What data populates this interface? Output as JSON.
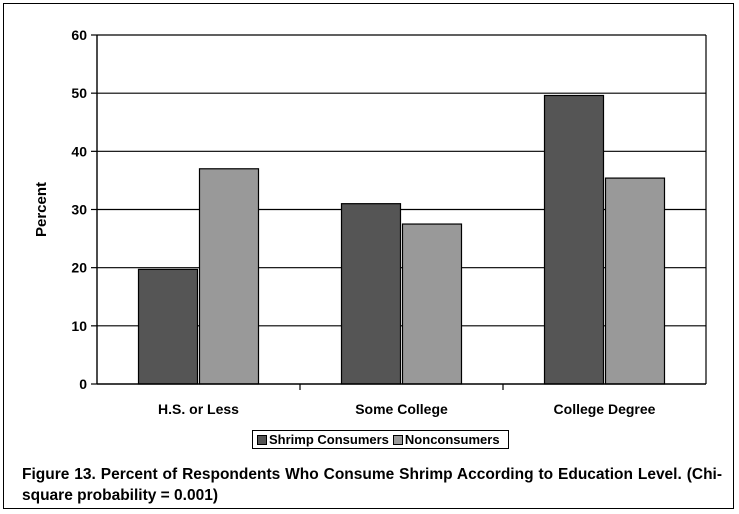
{
  "chart_data": {
    "type": "bar",
    "categories": [
      "H.S. or Less",
      "Some College",
      "College Degree"
    ],
    "series": [
      {
        "name": "Shrimp Consumers",
        "values": [
          19.7,
          31,
          49.6
        ],
        "color": "#555555"
      },
      {
        "name": "Nonconsumers",
        "values": [
          37,
          27.5,
          35.4
        ],
        "color": "#999999"
      }
    ],
    "ylabel": "Percent",
    "xlabel": "",
    "ylim": [
      0,
      60
    ],
    "yticks": [
      0,
      10,
      20,
      30,
      40,
      50,
      60
    ],
    "grid": true,
    "legend_position": "bottom"
  },
  "caption": "Figure 13. Percent of Respondents Who Consume Shrimp According to Education Level. (Chi-square probability = 0.001)"
}
